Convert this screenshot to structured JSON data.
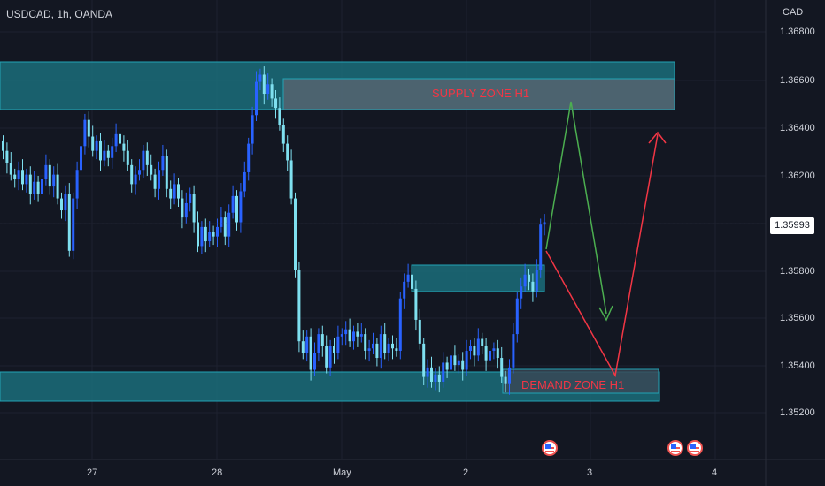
{
  "header": {
    "symbol_title": "USDCAD, 1h, OANDA"
  },
  "price_axis": {
    "currency": "CAD",
    "ticks": [
      "1.36800",
      "1.36600",
      "1.36400",
      "1.36200",
      "1.35800",
      "1.35600",
      "1.35400",
      "1.35200"
    ],
    "current_price": "1.35993"
  },
  "time_axis": {
    "ticks": [
      "27",
      "28",
      "May",
      "2",
      "3",
      "4"
    ]
  },
  "zones": {
    "supply_label": "SUPPLY ZONE H1",
    "demand_label": "DEMAND ZONE H1"
  },
  "colors": {
    "background": "#131722",
    "bull_candle": "#2962ff",
    "bear_candle": "#7fe0f0",
    "zone_fill": "#1b6d7a",
    "zone_label": "#f23645",
    "bull_path": "#4caf50",
    "bear_path": "#f23645"
  },
  "events": [
    "us-flag-icon",
    "us-flag-icon",
    "us-flag-icon"
  ],
  "chart_data": {
    "type": "candlestick",
    "symbol": "USDCAD",
    "timeframe": "1h",
    "ylim": [
      1.351,
      1.369
    ],
    "current_price": 1.35993,
    "closes": [
      1.363,
      1.3625,
      1.362,
      1.3618,
      1.3622,
      1.3616,
      1.362,
      1.3612,
      1.3617,
      1.3612,
      1.3618,
      1.3624,
      1.3615,
      1.362,
      1.361,
      1.3605,
      1.3612,
      1.3588,
      1.361,
      1.3622,
      1.3632,
      1.3643,
      1.3636,
      1.363,
      1.3634,
      1.3626,
      1.363,
      1.3627,
      1.3632,
      1.3637,
      1.3633,
      1.363,
      1.3624,
      1.3616,
      1.362,
      1.3622,
      1.363,
      1.3624,
      1.362,
      1.3614,
      1.3622,
      1.3628,
      1.3614,
      1.361,
      1.3616,
      1.361,
      1.3602,
      1.3608,
      1.3612,
      1.36,
      1.359,
      1.3598,
      1.3592,
      1.3596,
      1.3594,
      1.3598,
      1.3602,
      1.3594,
      1.3604,
      1.3611,
      1.36,
      1.3613,
      1.3621,
      1.3633,
      1.3645,
      1.3659,
      1.3662,
      1.3654,
      1.3658,
      1.3652,
      1.3648,
      1.3641,
      1.3633,
      1.3626,
      1.361,
      1.358,
      1.355,
      1.3545,
      1.3552,
      1.3538,
      1.3545,
      1.3553,
      1.3548,
      1.3539,
      1.3548,
      1.3545,
      1.3552,
      1.3553,
      1.3555,
      1.355,
      1.3554,
      1.3552,
      1.3553,
      1.3546,
      1.3547,
      1.3549,
      1.3543,
      1.3553,
      1.3545,
      1.3549,
      1.3547,
      1.3546,
      1.3568,
      1.3575,
      1.3578,
      1.3572,
      1.3559,
      1.3549,
      1.3535,
      1.3539,
      1.3533,
      1.3536,
      1.3533,
      1.3541,
      1.3538,
      1.3544,
      1.354,
      1.3542,
      1.3538,
      1.3546,
      1.3548,
      1.3544,
      1.3551,
      1.3548,
      1.3542,
      1.3546,
      1.3547,
      1.3543,
      1.3535,
      1.3532,
      1.3539,
      1.3553,
      1.3568,
      1.3573,
      1.3578,
      1.3575,
      1.3571,
      1.358,
      1.3599,
      1.36
    ]
  }
}
